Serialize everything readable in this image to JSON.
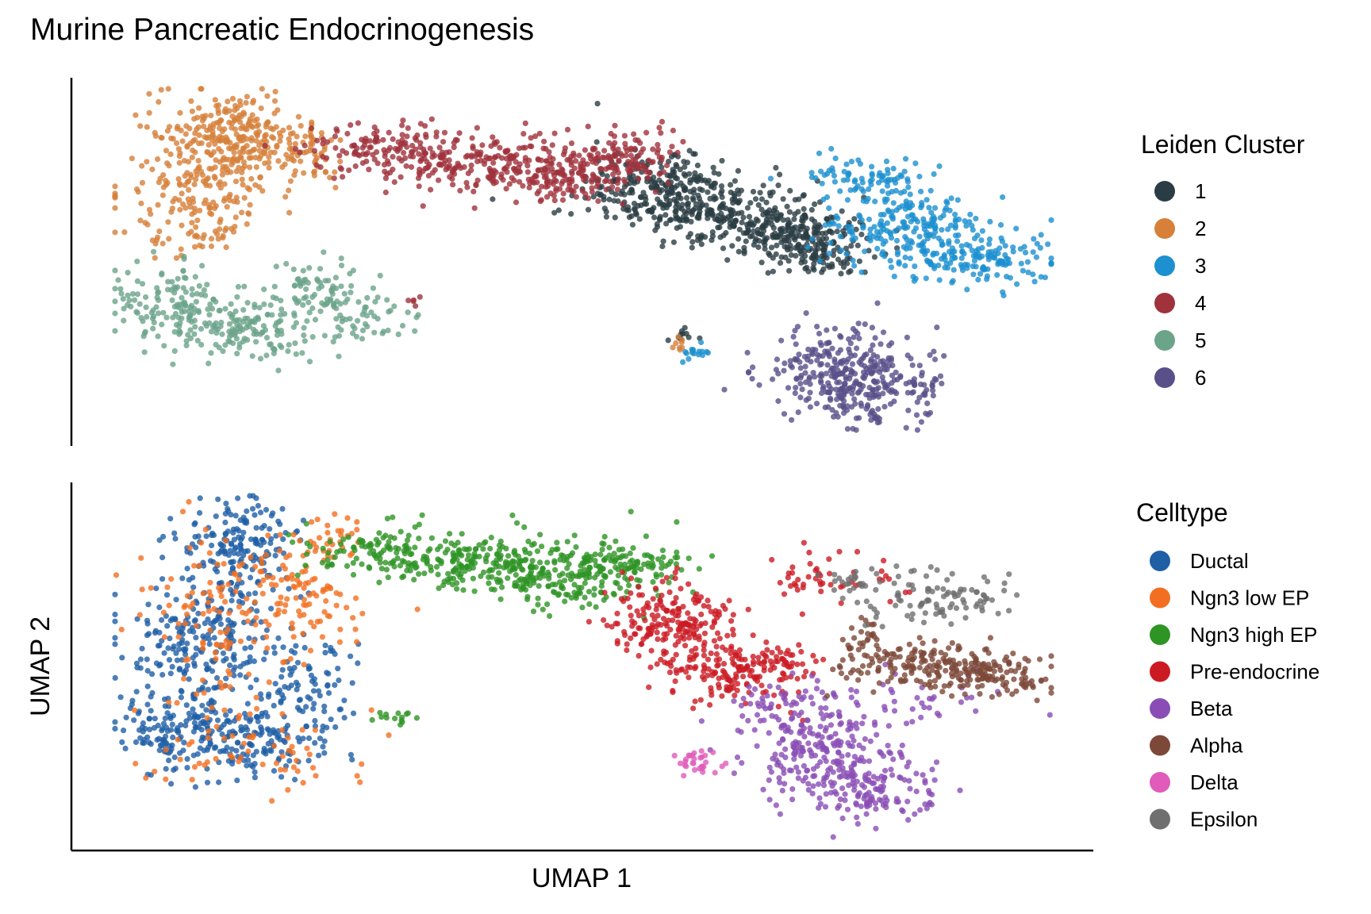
{
  "title": "Murine Pancreatic Endocrinogenesis",
  "chart_data": [
    {
      "type": "scatter",
      "panel": "top",
      "title": "",
      "xlabel": "",
      "ylabel": "",
      "grid": false,
      "legend_placement": "right",
      "legend_title": "Leiden Cluster",
      "series": [
        {
          "name": "1",
          "color": "#2b3d44",
          "clusters": [
            {
              "cx": 0.585,
              "cy": 0.295,
              "sx": 0.045,
              "sy": 0.06,
              "n": 260
            },
            {
              "cx": 0.66,
              "cy": 0.375,
              "sx": 0.05,
              "sy": 0.05,
              "n": 200
            },
            {
              "cx": 0.73,
              "cy": 0.42,
              "sx": 0.035,
              "sy": 0.035,
              "n": 150
            },
            {
              "cx": 0.75,
              "cy": 0.49,
              "sx": 0.025,
              "sy": 0.03,
              "n": 80
            },
            {
              "cx": 0.61,
              "cy": 0.72,
              "sx": 0.008,
              "sy": 0.015,
              "n": 10
            }
          ]
        },
        {
          "name": "2",
          "color": "#d6803a",
          "clusters": [
            {
              "cx": 0.12,
              "cy": 0.14,
              "sx": 0.04,
              "sy": 0.065,
              "n": 260
            },
            {
              "cx": 0.09,
              "cy": 0.33,
              "sx": 0.04,
              "sy": 0.08,
              "n": 160
            },
            {
              "cx": 0.2,
              "cy": 0.2,
              "sx": 0.025,
              "sy": 0.045,
              "n": 70
            },
            {
              "cx": 0.6,
              "cy": 0.755,
              "sx": 0.006,
              "sy": 0.012,
              "n": 8
            }
          ]
        },
        {
          "name": "3",
          "color": "#1c90d0",
          "clusters": [
            {
              "cx": 0.845,
              "cy": 0.4,
              "sx": 0.045,
              "sy": 0.065,
              "n": 230
            },
            {
              "cx": 0.925,
              "cy": 0.5,
              "sx": 0.04,
              "sy": 0.04,
              "n": 140
            },
            {
              "cx": 0.8,
              "cy": 0.255,
              "sx": 0.03,
              "sy": 0.03,
              "n": 60
            },
            {
              "cx": 0.62,
              "cy": 0.78,
              "sx": 0.01,
              "sy": 0.015,
              "n": 16
            }
          ]
        },
        {
          "name": "4",
          "color": "#a0323c",
          "clusters": [
            {
              "cx": 0.28,
              "cy": 0.175,
              "sx": 0.04,
              "sy": 0.035,
              "n": 120
            },
            {
              "cx": 0.38,
              "cy": 0.22,
              "sx": 0.045,
              "sy": 0.045,
              "n": 180
            },
            {
              "cx": 0.48,
              "cy": 0.25,
              "sx": 0.04,
              "sy": 0.045,
              "n": 160
            },
            {
              "cx": 0.55,
              "cy": 0.2,
              "sx": 0.03,
              "sy": 0.04,
              "n": 100
            },
            {
              "cx": 0.32,
              "cy": 0.63,
              "sx": 0.006,
              "sy": 0.01,
              "n": 5
            }
          ]
        },
        {
          "name": "5",
          "color": "#6ba489",
          "clusters": [
            {
              "cx": 0.06,
              "cy": 0.63,
              "sx": 0.03,
              "sy": 0.06,
              "n": 120
            },
            {
              "cx": 0.14,
              "cy": 0.7,
              "sx": 0.05,
              "sy": 0.045,
              "n": 160
            },
            {
              "cx": 0.22,
              "cy": 0.6,
              "sx": 0.035,
              "sy": 0.05,
              "n": 90
            },
            {
              "cx": 0.28,
              "cy": 0.68,
              "sx": 0.02,
              "sy": 0.025,
              "n": 25
            }
          ]
        },
        {
          "name": "6",
          "color": "#59508a",
          "clusters": [
            {
              "cx": 0.775,
              "cy": 0.83,
              "sx": 0.045,
              "sy": 0.065,
              "n": 260
            },
            {
              "cx": 0.82,
              "cy": 0.87,
              "sx": 0.035,
              "sy": 0.05,
              "n": 110
            }
          ]
        }
      ]
    },
    {
      "type": "scatter",
      "panel": "bottom",
      "title": "",
      "xlabel": "UMAP 1",
      "ylabel": "UMAP 2",
      "grid": false,
      "legend_placement": "right",
      "legend_title": "Celltype",
      "series": [
        {
          "name": "Ductal",
          "color": "#1f5fa6",
          "clusters": [
            {
              "cx": 0.13,
              "cy": 0.15,
              "sx": 0.035,
              "sy": 0.07,
              "n": 180
            },
            {
              "cx": 0.09,
              "cy": 0.43,
              "sx": 0.04,
              "sy": 0.09,
              "n": 220
            },
            {
              "cx": 0.07,
              "cy": 0.68,
              "sx": 0.03,
              "sy": 0.07,
              "n": 130
            },
            {
              "cx": 0.15,
              "cy": 0.72,
              "sx": 0.045,
              "sy": 0.05,
              "n": 150
            },
            {
              "cx": 0.2,
              "cy": 0.55,
              "sx": 0.03,
              "sy": 0.08,
              "n": 90
            }
          ]
        },
        {
          "name": "Ngn3 low EP",
          "color": "#f26f21",
          "clusters": [
            {
              "cx": 0.12,
              "cy": 0.35,
              "sx": 0.05,
              "sy": 0.14,
              "n": 140
            },
            {
              "cx": 0.21,
              "cy": 0.3,
              "sx": 0.03,
              "sy": 0.07,
              "n": 70
            },
            {
              "cx": 0.14,
              "cy": 0.74,
              "sx": 0.06,
              "sy": 0.06,
              "n": 60
            },
            {
              "cx": 0.23,
              "cy": 0.13,
              "sx": 0.02,
              "sy": 0.04,
              "n": 30
            }
          ]
        },
        {
          "name": "Ngn3 high EP",
          "color": "#2e9424",
          "clusters": [
            {
              "cx": 0.28,
              "cy": 0.17,
              "sx": 0.04,
              "sy": 0.035,
              "n": 110
            },
            {
              "cx": 0.38,
              "cy": 0.2,
              "sx": 0.045,
              "sy": 0.045,
              "n": 180
            },
            {
              "cx": 0.48,
              "cy": 0.24,
              "sx": 0.04,
              "sy": 0.045,
              "n": 160
            },
            {
              "cx": 0.55,
              "cy": 0.2,
              "sx": 0.03,
              "sy": 0.045,
              "n": 100
            },
            {
              "cx": 0.3,
              "cy": 0.65,
              "sx": 0.012,
              "sy": 0.015,
              "n": 14
            }
          ]
        },
        {
          "name": "Pre-endocrine",
          "color": "#cc1a23",
          "clusters": [
            {
              "cx": 0.595,
              "cy": 0.38,
              "sx": 0.035,
              "sy": 0.06,
              "n": 200
            },
            {
              "cx": 0.66,
              "cy": 0.52,
              "sx": 0.035,
              "sy": 0.05,
              "n": 140
            },
            {
              "cx": 0.71,
              "cy": 0.48,
              "sx": 0.025,
              "sy": 0.03,
              "n": 40
            },
            {
              "cx": 0.77,
              "cy": 0.24,
              "sx": 0.04,
              "sy": 0.04,
              "n": 40
            },
            {
              "cx": 0.735,
              "cy": 0.23,
              "sx": 0.012,
              "sy": 0.015,
              "n": 10
            }
          ]
        },
        {
          "name": "Beta",
          "color": "#8a4db5",
          "clusters": [
            {
              "cx": 0.745,
              "cy": 0.72,
              "sx": 0.035,
              "sy": 0.075,
              "n": 200
            },
            {
              "cx": 0.8,
              "cy": 0.85,
              "sx": 0.04,
              "sy": 0.05,
              "n": 160
            },
            {
              "cx": 0.86,
              "cy": 0.6,
              "sx": 0.045,
              "sy": 0.04,
              "n": 40
            },
            {
              "cx": 0.69,
              "cy": 0.6,
              "sx": 0.02,
              "sy": 0.03,
              "n": 25
            }
          ]
        },
        {
          "name": "Alpha",
          "color": "#7d4838",
          "clusters": [
            {
              "cx": 0.86,
              "cy": 0.5,
              "sx": 0.045,
              "sy": 0.035,
              "n": 150
            },
            {
              "cx": 0.94,
              "cy": 0.53,
              "sx": 0.035,
              "sy": 0.03,
              "n": 110
            },
            {
              "cx": 0.805,
              "cy": 0.42,
              "sx": 0.015,
              "sy": 0.04,
              "n": 30
            }
          ]
        },
        {
          "name": "Delta",
          "color": "#e05bba",
          "clusters": [
            {
              "cx": 0.62,
              "cy": 0.78,
              "sx": 0.012,
              "sy": 0.018,
              "n": 30
            }
          ]
        },
        {
          "name": "Epsilon",
          "color": "#6f6f6f",
          "clusters": [
            {
              "cx": 0.87,
              "cy": 0.3,
              "sx": 0.045,
              "sy": 0.045,
              "n": 100
            },
            {
              "cx": 0.79,
              "cy": 0.25,
              "sx": 0.02,
              "sy": 0.015,
              "n": 20
            }
          ]
        }
      ]
    }
  ]
}
